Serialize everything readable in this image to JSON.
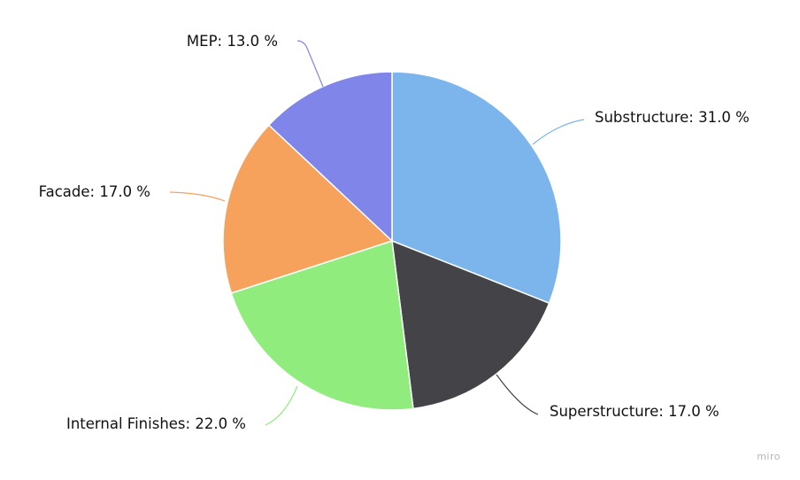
{
  "chart_data": {
    "type": "pie",
    "title": "",
    "categories": [
      "Substructure",
      "Superstructure",
      "Internal Finishes",
      "Facade",
      "MEP"
    ],
    "values": [
      31.0,
      17.0,
      22.0,
      17.0,
      13.0
    ],
    "unit": "%",
    "colors": [
      "#7cb4ec",
      "#434348",
      "#90ec7d",
      "#f7a25c",
      "#8085e9"
    ],
    "labels": [
      "Substructure: 31.0 %",
      "Superstructure: 17.0 %",
      "Internal Finishes: 22.0 %",
      "Facade: 17.0 %",
      "MEP: 13.0 %"
    ],
    "start_angle": "12 o'clock",
    "direction": "clockwise",
    "legend": "none"
  },
  "watermark": "miro"
}
